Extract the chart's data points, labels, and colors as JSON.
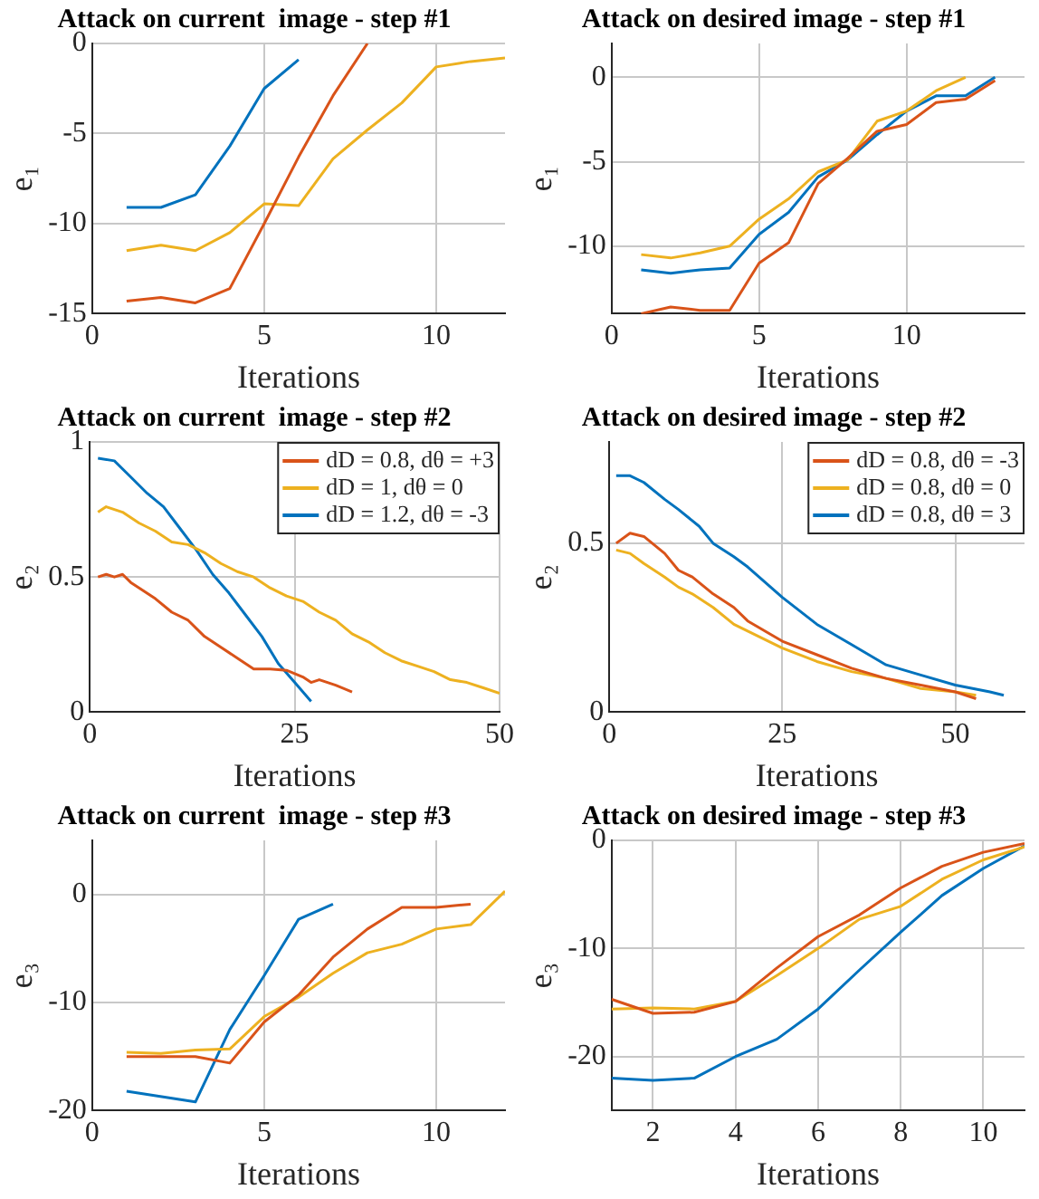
{
  "chart_data": [
    {
      "type": "line",
      "title": "Attack on current  image - step #1",
      "xlabel": "Iterations",
      "ylabel": "e₁",
      "xlim": [
        0,
        12
      ],
      "ylim": [
        -15,
        0
      ],
      "xticks": [
        0,
        5,
        10
      ],
      "yticks": [
        -15,
        -10,
        -5,
        0
      ],
      "grid": true,
      "series": [
        {
          "color": "#d95319",
          "x": [
            1,
            2,
            3,
            4,
            5,
            6,
            7,
            8
          ],
          "values": [
            -14.3,
            -14.1,
            -14.4,
            -13.6,
            -10,
            -6.3,
            -2.9,
            0
          ]
        },
        {
          "color": "#edb120",
          "x": [
            1,
            2,
            3,
            4,
            5,
            6,
            7,
            8,
            9,
            10,
            11,
            12
          ],
          "values": [
            -11.5,
            -11.2,
            -11.5,
            -10.5,
            -8.9,
            -9,
            -6.4,
            -4.8,
            -3.3,
            -1.3,
            -1,
            -0.8
          ]
        },
        {
          "color": "#0072bd",
          "x": [
            1,
            2,
            3,
            4,
            5,
            6
          ],
          "values": [
            -9.1,
            -9.1,
            -8.4,
            -5.7,
            -2.5,
            -0.9
          ]
        }
      ]
    },
    {
      "type": "line",
      "title": "Attack on desired image - step #1",
      "xlabel": "Iterations",
      "ylabel": "e₁",
      "xlim": [
        0,
        14
      ],
      "ylim": [
        -14,
        2
      ],
      "xticks": [
        0,
        5,
        10
      ],
      "yticks": [
        -10,
        -5,
        0
      ],
      "grid": true,
      "series": [
        {
          "color": "#d95319",
          "x": [
            1,
            2,
            3,
            4,
            5,
            6,
            7,
            8,
            9,
            10,
            11,
            12,
            13
          ],
          "values": [
            -14,
            -13.6,
            -13.8,
            -13.8,
            -11,
            -9.8,
            -6.3,
            -4.8,
            -3.2,
            -2.8,
            -1.5,
            -1.3,
            -0.2
          ]
        },
        {
          "color": "#edb120",
          "x": [
            1,
            2,
            3,
            4,
            5,
            6,
            7,
            8,
            9,
            10,
            11,
            12
          ],
          "values": [
            -10.5,
            -10.7,
            -10.4,
            -10,
            -8.4,
            -7.2,
            -5.6,
            -4.9,
            -2.6,
            -2,
            -0.8,
            0
          ]
        },
        {
          "color": "#0072bd",
          "x": [
            1,
            2,
            3,
            4,
            5,
            6,
            7,
            8,
            9,
            10,
            11,
            12,
            13
          ],
          "values": [
            -11.4,
            -11.6,
            -11.4,
            -11.3,
            -9.3,
            -8,
            -5.9,
            -4.9,
            -3.4,
            -2,
            -1.1,
            -1.1,
            0
          ]
        }
      ]
    },
    {
      "type": "line",
      "title": "Attack on current  image - step #2",
      "xlabel": "Iterations",
      "ylabel": "e₂",
      "xlim": [
        0,
        50
      ],
      "ylim": [
        0,
        1
      ],
      "xticks": [
        0,
        25,
        50
      ],
      "yticks": [
        0,
        0.5,
        1
      ],
      "grid": true,
      "legend": "top right",
      "series": [
        {
          "name": "dD = 0.8, dθ = +3",
          "color": "#d95319",
          "x": [
            1,
            2,
            3,
            4,
            5,
            8,
            10,
            12,
            14,
            16,
            18,
            20,
            22,
            24,
            26,
            27,
            28,
            30,
            32
          ],
          "values": [
            0.5,
            0.51,
            0.5,
            0.51,
            0.48,
            0.42,
            0.37,
            0.34,
            0.28,
            0.24,
            0.2,
            0.16,
            0.16,
            0.155,
            0.13,
            0.11,
            0.12,
            0.1,
            0.075
          ]
        },
        {
          "name": "dD = 1, dθ = 0",
          "color": "#edb120",
          "x": [
            1,
            2,
            4,
            6,
            8,
            10,
            12,
            14,
            16,
            18,
            20,
            22,
            24,
            26,
            28,
            30,
            32,
            34,
            36,
            38,
            40,
            42,
            44,
            46,
            48,
            50
          ],
          "values": [
            0.74,
            0.76,
            0.74,
            0.7,
            0.67,
            0.63,
            0.62,
            0.59,
            0.55,
            0.52,
            0.5,
            0.46,
            0.43,
            0.41,
            0.37,
            0.34,
            0.29,
            0.26,
            0.22,
            0.19,
            0.17,
            0.15,
            0.12,
            0.11,
            0.09,
            0.07
          ]
        },
        {
          "name": "dD = 1.2, dθ = -3",
          "color": "#0072bd",
          "x": [
            1,
            3,
            5,
            7,
            9,
            11,
            13,
            15,
            17,
            19,
            21,
            23,
            25,
            27
          ],
          "values": [
            0.94,
            0.93,
            0.87,
            0.81,
            0.76,
            0.68,
            0.6,
            0.51,
            0.44,
            0.36,
            0.28,
            0.18,
            0.11,
            0.04
          ]
        }
      ]
    },
    {
      "type": "line",
      "title": "Attack on desired image - step #2",
      "xlabel": "Iterations",
      "ylabel": "e₂",
      "xlim": [
        0,
        60
      ],
      "ylim": [
        0,
        0.8
      ],
      "xticks": [
        0,
        25,
        50
      ],
      "yticks": [
        0,
        0.5
      ],
      "grid": true,
      "legend": "top right",
      "series": [
        {
          "name": "dD = 0.8, dθ = -3",
          "color": "#d95319",
          "x": [
            1,
            3,
            5,
            8,
            10,
            12,
            15,
            18,
            20,
            25,
            30,
            35,
            40,
            45,
            50,
            53
          ],
          "values": [
            0.5,
            0.53,
            0.52,
            0.47,
            0.42,
            0.4,
            0.35,
            0.31,
            0.27,
            0.21,
            0.17,
            0.13,
            0.1,
            0.08,
            0.06,
            0.04
          ]
        },
        {
          "name": "dD = 0.8, dθ = 0",
          "color": "#edb120",
          "x": [
            1,
            3,
            5,
            8,
            10,
            12,
            15,
            18,
            20,
            25,
            30,
            35,
            40,
            45,
            50,
            53
          ],
          "values": [
            0.48,
            0.47,
            0.44,
            0.4,
            0.37,
            0.35,
            0.31,
            0.26,
            0.24,
            0.19,
            0.15,
            0.12,
            0.1,
            0.07,
            0.06,
            0.05
          ]
        },
        {
          "name": "dD = 0.8, dθ = 3",
          "color": "#0072bd",
          "x": [
            1,
            3,
            5,
            8,
            10,
            13,
            15,
            18,
            20,
            25,
            30,
            35,
            40,
            45,
            50,
            55,
            57
          ],
          "values": [
            0.7,
            0.7,
            0.68,
            0.63,
            0.6,
            0.55,
            0.5,
            0.46,
            0.43,
            0.34,
            0.26,
            0.2,
            0.14,
            0.11,
            0.08,
            0.06,
            0.05
          ]
        }
      ]
    },
    {
      "type": "line",
      "title": "Attack on current  image - step #3",
      "xlabel": "Iterations",
      "ylabel": "e₃",
      "xlim": [
        0,
        12
      ],
      "ylim": [
        -20,
        5
      ],
      "xticks": [
        0,
        5,
        10
      ],
      "yticks": [
        -20,
        -10,
        0
      ],
      "grid": true,
      "series": [
        {
          "color": "#d95319",
          "x": [
            1,
            2,
            3,
            4,
            5,
            6,
            7,
            8,
            9,
            10,
            11
          ],
          "values": [
            -15,
            -15,
            -15,
            -15.6,
            -11.8,
            -9.3,
            -5.8,
            -3.2,
            -1.2,
            -1.2,
            -0.9
          ]
        },
        {
          "color": "#edb120",
          "x": [
            1,
            2,
            3,
            4,
            5,
            6,
            7,
            8,
            9,
            10,
            11,
            12
          ],
          "values": [
            -14.6,
            -14.7,
            -14.4,
            -14.3,
            -11.3,
            -9.5,
            -7.3,
            -5.4,
            -4.6,
            -3.2,
            -2.8,
            0.3
          ]
        },
        {
          "color": "#0072bd",
          "x": [
            1,
            3,
            4,
            5,
            6,
            7
          ],
          "values": [
            -18.2,
            -19.2,
            -12.5,
            -7.5,
            -2.3,
            -0.9
          ]
        }
      ]
    },
    {
      "type": "line",
      "title": "Attack on desired image - step #3",
      "xlabel": "Iterations",
      "ylabel": "e₃",
      "xlim": [
        1,
        11
      ],
      "ylim": [
        -25,
        0
      ],
      "xticks": [
        2,
        4,
        6,
        8,
        10
      ],
      "yticks": [
        -20,
        -10,
        0
      ],
      "grid": true,
      "series": [
        {
          "color": "#d95319",
          "x": [
            1,
            2,
            3,
            4,
            5,
            6,
            7,
            8,
            9,
            10,
            11
          ],
          "values": [
            -14.7,
            -16,
            -15.9,
            -14.9,
            -11.8,
            -8.9,
            -6.9,
            -4.4,
            -2.4,
            -1.1,
            -0.3
          ]
        },
        {
          "color": "#edb120",
          "x": [
            1,
            2,
            3,
            4,
            5,
            6,
            7,
            8,
            9,
            10,
            11
          ],
          "values": [
            -15.6,
            -15.5,
            -15.6,
            -14.9,
            -12.5,
            -10,
            -7.3,
            -6.1,
            -3.6,
            -1.8,
            -0.6
          ]
        },
        {
          "color": "#0072bd",
          "x": [
            1,
            2,
            3,
            4,
            5,
            6,
            7,
            8,
            9,
            10,
            11
          ],
          "values": [
            -22,
            -22.2,
            -22,
            -20,
            -18.4,
            -15.6,
            -12,
            -8.5,
            -5.1,
            -2.6,
            -0.5
          ]
        }
      ]
    }
  ]
}
